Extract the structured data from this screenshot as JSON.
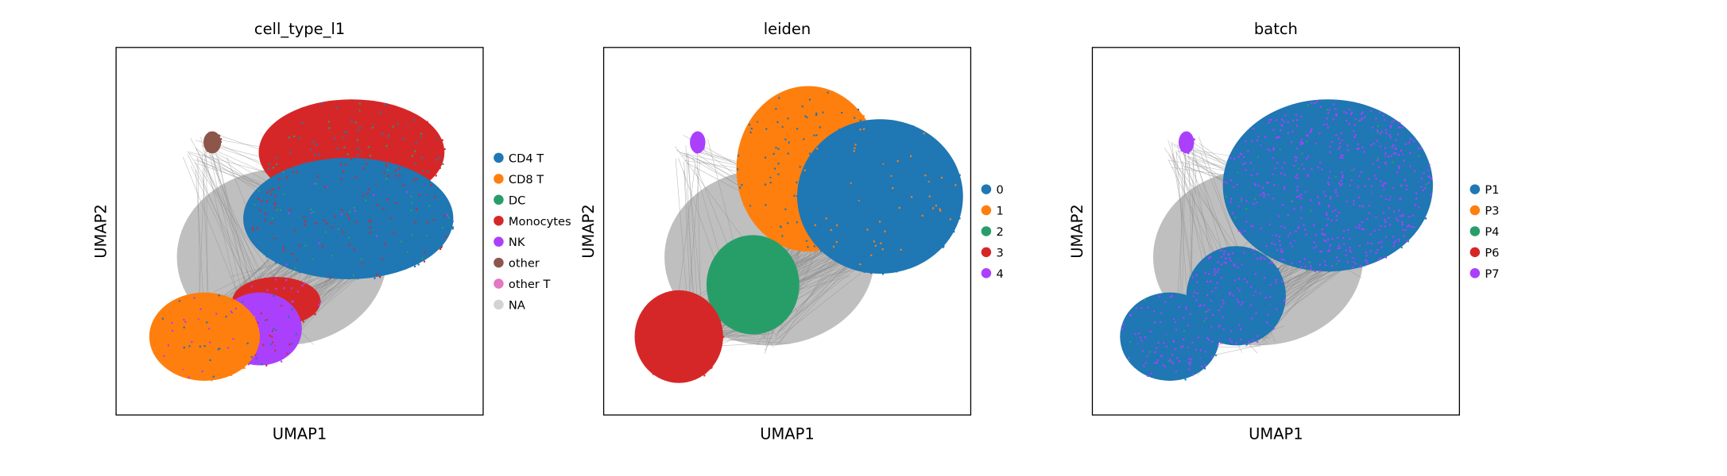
{
  "figure": {
    "panels": [
      {
        "title": "cell_type_l1",
        "xlabel": "UMAP1",
        "ylabel": "UMAP2",
        "legend": [
          {
            "label": "CD4 T",
            "color": "#1f77b4"
          },
          {
            "label": "CD8 T",
            "color": "#ff7f0e"
          },
          {
            "label": "DC",
            "color": "#279e68"
          },
          {
            "label": "Monocytes",
            "color": "#d62728"
          },
          {
            "label": "NK",
            "color": "#aa40fc"
          },
          {
            "label": "other",
            "color": "#8c564b"
          },
          {
            "label": "other T",
            "color": "#e377c2"
          },
          {
            "label": "NA",
            "color": "#d3d3d3"
          }
        ]
      },
      {
        "title": "leiden",
        "xlabel": "UMAP1",
        "ylabel": "UMAP2",
        "legend": [
          {
            "label": "0",
            "color": "#1f77b4"
          },
          {
            "label": "1",
            "color": "#ff7f0e"
          },
          {
            "label": "2",
            "color": "#279e68"
          },
          {
            "label": "3",
            "color": "#d62728"
          },
          {
            "label": "4",
            "color": "#aa40fc"
          }
        ]
      },
      {
        "title": "batch",
        "xlabel": "UMAP1",
        "ylabel": "UMAP2",
        "legend": [
          {
            "label": "P1",
            "color": "#1f77b4"
          },
          {
            "label": "P3",
            "color": "#ff7f0e"
          },
          {
            "label": "P4",
            "color": "#279e68"
          },
          {
            "label": "P6",
            "color": "#d62728"
          },
          {
            "label": "P7",
            "color": "#aa40fc"
          }
        ]
      }
    ]
  },
  "chart_data": [
    {
      "type": "scatter",
      "title": "cell_type_l1",
      "xlabel": "UMAP1",
      "ylabel": "UMAP2",
      "grid": false,
      "ticks": false,
      "edges_drawn": true,
      "edge_color": "#808080",
      "legend_placement": "right outside",
      "categories": [
        "CD4 T",
        "CD8 T",
        "DC",
        "Monocytes",
        "NK",
        "other",
        "other T",
        "NA"
      ],
      "colors": [
        "#1f77b4",
        "#ff7f0e",
        "#279e68",
        "#d62728",
        "#aa40fc",
        "#8c564b",
        "#e377c2",
        "#d3d3d3"
      ]
    },
    {
      "type": "scatter",
      "title": "leiden",
      "xlabel": "UMAP1",
      "ylabel": "UMAP2",
      "grid": false,
      "ticks": false,
      "edges_drawn": true,
      "edge_color": "#808080",
      "legend_placement": "right outside",
      "categories": [
        "0",
        "1",
        "2",
        "3",
        "4"
      ],
      "colors": [
        "#1f77b4",
        "#ff7f0e",
        "#279e68",
        "#d62728",
        "#aa40fc"
      ]
    },
    {
      "type": "scatter",
      "title": "batch",
      "xlabel": "UMAP1",
      "ylabel": "UMAP2",
      "grid": false,
      "ticks": false,
      "edges_drawn": true,
      "edge_color": "#808080",
      "legend_placement": "right outside",
      "categories": [
        "P1",
        "P3",
        "P4",
        "P6",
        "P7"
      ],
      "colors": [
        "#1f77b4",
        "#ff7f0e",
        "#279e68",
        "#d62728",
        "#aa40fc"
      ]
    }
  ]
}
